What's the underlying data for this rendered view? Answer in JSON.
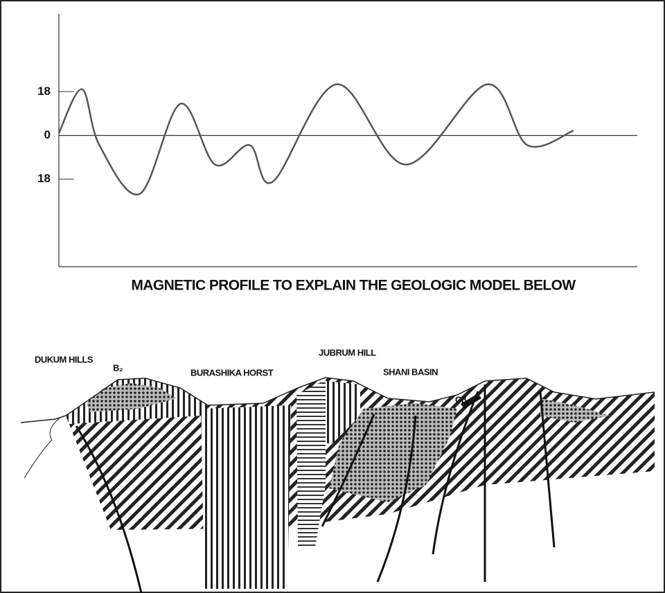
{
  "chart_data": {
    "type": "line",
    "title": "MAGNETIC PROFILE TO EXPLAIN THE GEOLOGIC MODEL BELOW",
    "x": [
      0,
      4,
      7,
      14,
      21,
      27,
      33,
      37,
      48,
      60,
      74,
      81,
      89
    ],
    "values": [
      1,
      19,
      -4,
      -24,
      13,
      -12,
      -4,
      -19,
      21,
      -12,
      21,
      -4,
      2
    ],
    "xlim": [
      0,
      100
    ],
    "ylim": [
      -54,
      50
    ],
    "yticks": [
      18,
      0,
      {
        "value": -18,
        "label": "18"
      }
    ],
    "color": "#555555"
  },
  "section": {
    "labels": [
      "DUKUM HILLS",
      "B₂",
      "BURASHIKA HORST",
      "JUBRUM HILL",
      "SHANI BASIN",
      "Cβ"
    ]
  }
}
